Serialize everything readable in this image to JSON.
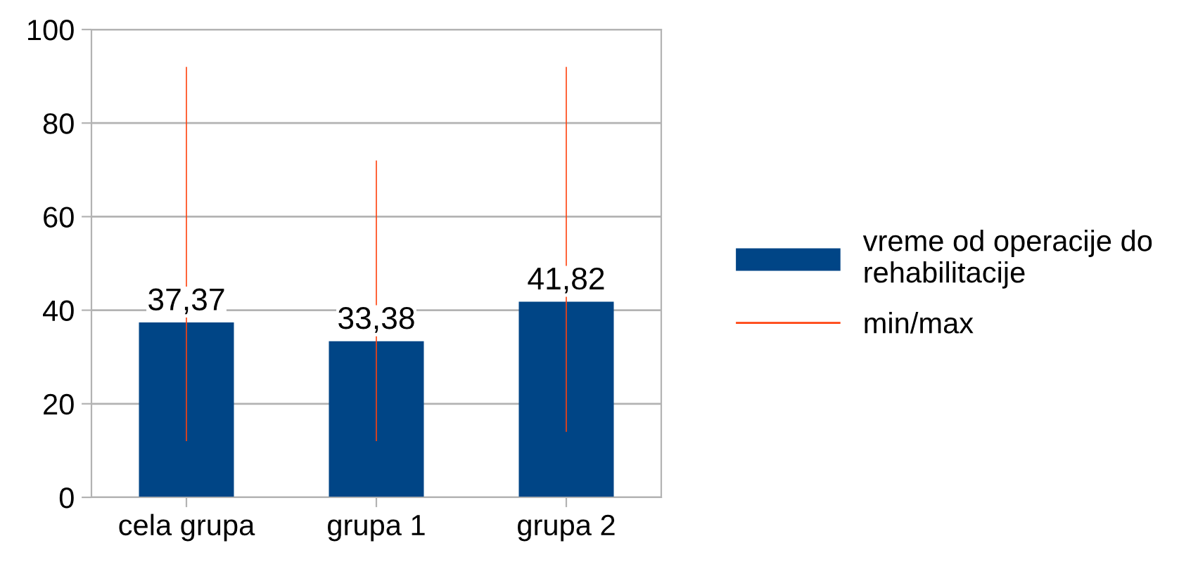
{
  "chart_data": {
    "type": "bar",
    "categories": [
      "cela grupa",
      "grupa 1",
      "grupa 2"
    ],
    "series": [
      {
        "name": "vreme od operacije do rehabilitacije",
        "color": "#004586",
        "values": [
          37.37,
          33.38,
          41.82
        ],
        "value_labels": [
          "37,37",
          "33,38",
          "41,82"
        ]
      },
      {
        "name": "min/max",
        "color": "#ff420e",
        "type": "bar",
        "base": [
          12,
          12,
          14
        ],
        "values": [
          80,
          60,
          78
        ]
      }
    ],
    "ylim": [
      0,
      100
    ],
    "yticks": [
      0,
      20,
      40,
      60,
      80,
      100
    ],
    "grid": "y",
    "legend": "right"
  }
}
